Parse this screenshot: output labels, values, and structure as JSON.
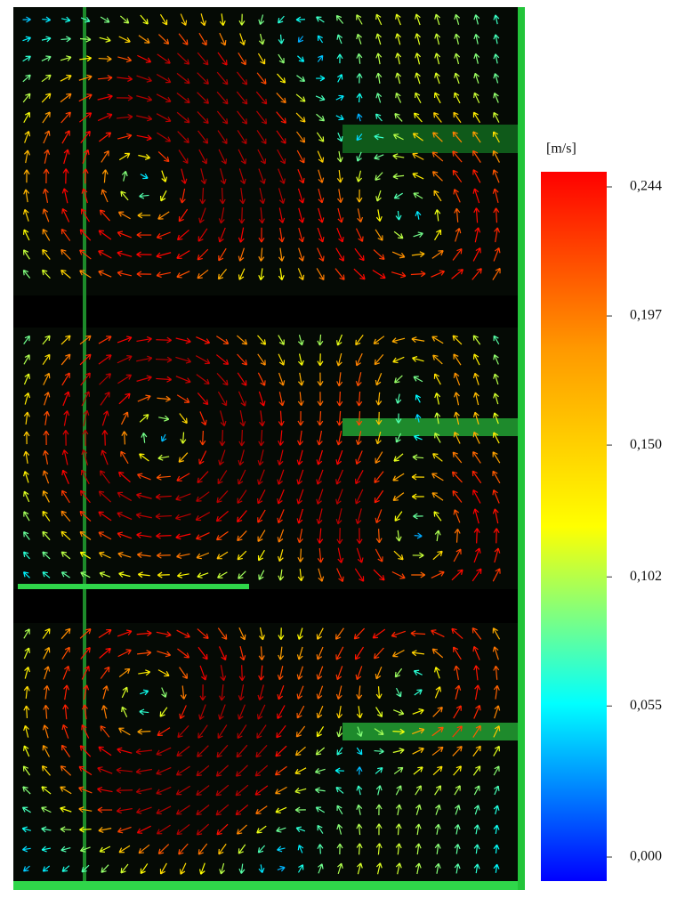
{
  "colorbar": {
    "unit": "[m/s]",
    "clim": [
      0,
      0.244
    ],
    "ticks": [
      {
        "value": 0,
        "label": "0,000"
      },
      {
        "value": 0.055,
        "label": "0,055"
      },
      {
        "value": 0.102,
        "label": "0,102"
      },
      {
        "value": 0.15,
        "label": "0,150"
      },
      {
        "value": 0.197,
        "label": "0,197"
      },
      {
        "value": 0.244,
        "label": "0,244"
      }
    ]
  }
}
